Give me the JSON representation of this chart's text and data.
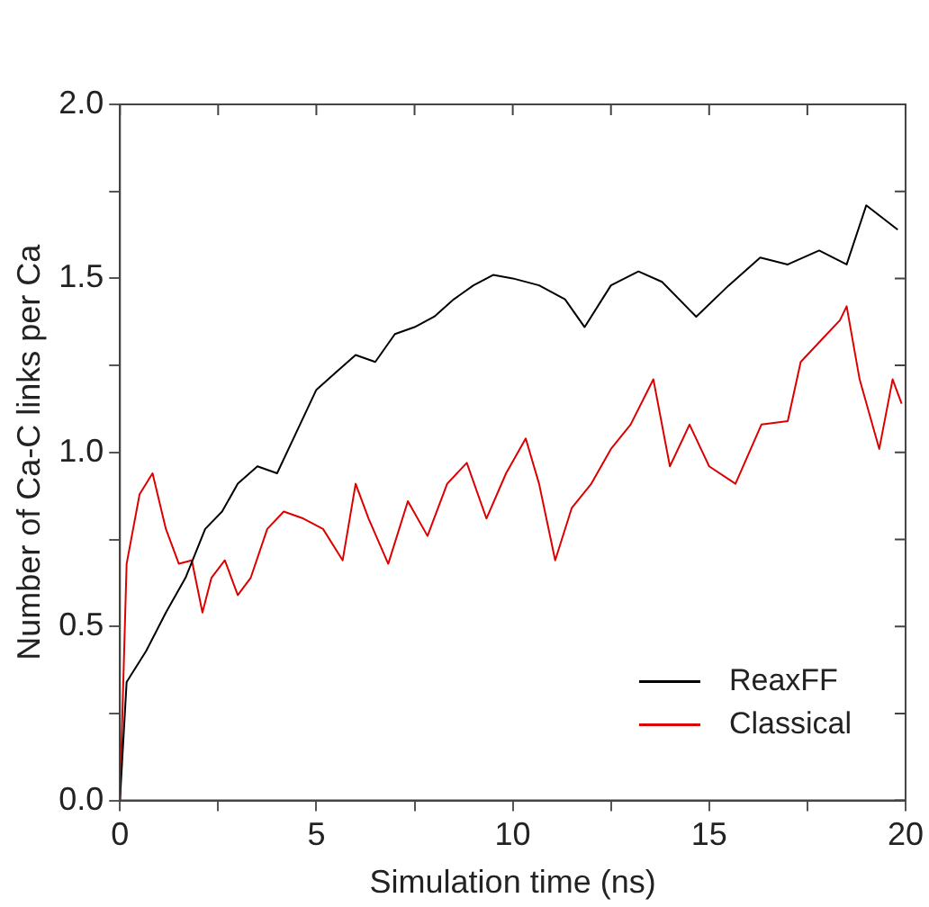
{
  "chart_data": {
    "type": "line",
    "xlabel": "Simulation time (ns)",
    "ylabel": "Number of Ca-C links per Ca",
    "xlim": [
      0,
      20
    ],
    "xticks": [
      0,
      {
        "value": 2.5,
        "label": null
      },
      5,
      {
        "value": 7.5,
        "label": null
      },
      10,
      {
        "value": 12.5,
        "label": null
      },
      15,
      {
        "value": 17.5,
        "label": null
      },
      20
    ],
    "ylim": [
      0,
      2
    ],
    "yticks": [
      "0.0",
      {
        "value": 0.25,
        "label": null
      },
      {
        "value": 0.5,
        "label": "0.5"
      },
      {
        "value": 0.75,
        "label": null
      },
      {
        "value": 1,
        "label": "1.0"
      },
      {
        "value": 1.25,
        "label": null
      },
      {
        "value": 1.5,
        "label": "1.5"
      },
      {
        "value": 1.75,
        "label": null
      },
      {
        "value": 2,
        "label": "2.0"
      }
    ],
    "grid": false,
    "legend": "bottom right",
    "marker": "none",
    "line_style": "solid",
    "series": [
      {
        "name": "ReaxFF",
        "color": "#000000",
        "x": [
          0,
          0.17,
          0.67,
          1.17,
          1.67,
          2.17,
          2.6,
          3,
          3.5,
          4,
          4.5,
          5,
          5.5,
          6,
          6.5,
          7,
          7.5,
          8,
          8.5,
          9,
          9.5,
          10,
          10.67,
          11.33,
          11.83,
          12.5,
          13.2,
          13.8,
          14.67,
          15.5,
          16.3,
          17,
          17.8,
          18.5,
          19,
          19.8
        ],
        "values": [
          0,
          0.34,
          0.43,
          0.54,
          0.64,
          0.78,
          0.83,
          0.91,
          0.96,
          0.94,
          1.06,
          1.18,
          1.23,
          1.28,
          1.26,
          1.34,
          1.36,
          1.39,
          1.44,
          1.48,
          1.51,
          1.5,
          1.48,
          1.44,
          1.36,
          1.48,
          1.52,
          1.49,
          1.39,
          1.48,
          1.56,
          1.54,
          1.58,
          1.54,
          1.71,
          1.64
        ]
      },
      {
        "name": "Classical",
        "color": "#dd0000",
        "x": [
          0,
          0.17,
          0.5,
          0.83,
          1.17,
          1.5,
          1.83,
          2.1,
          2.33,
          2.67,
          3,
          3.33,
          3.75,
          4.17,
          4.67,
          5.17,
          5.67,
          6,
          6.33,
          6.83,
          7.33,
          7.83,
          8.33,
          8.83,
          9.33,
          9.83,
          10.33,
          10.67,
          11.08,
          11.5,
          12,
          12.5,
          13,
          13.58,
          14,
          14.5,
          15,
          15.67,
          16.33,
          17,
          17.33,
          17.83,
          18.33,
          18.5,
          18.83,
          19.33,
          19.67,
          19.9
        ],
        "values": [
          0,
          0.68,
          0.88,
          0.94,
          0.78,
          0.68,
          0.69,
          0.54,
          0.64,
          0.69,
          0.59,
          0.64,
          0.78,
          0.83,
          0.81,
          0.78,
          0.69,
          0.91,
          0.81,
          0.68,
          0.86,
          0.76,
          0.91,
          0.97,
          0.81,
          0.94,
          1.04,
          0.91,
          0.69,
          0.84,
          0.91,
          1.01,
          1.08,
          1.21,
          0.96,
          1.08,
          0.96,
          0.91,
          1.08,
          1.09,
          1.26,
          1.32,
          1.38,
          1.42,
          1.21,
          1.01,
          1.21,
          1.14
        ]
      }
    ]
  }
}
